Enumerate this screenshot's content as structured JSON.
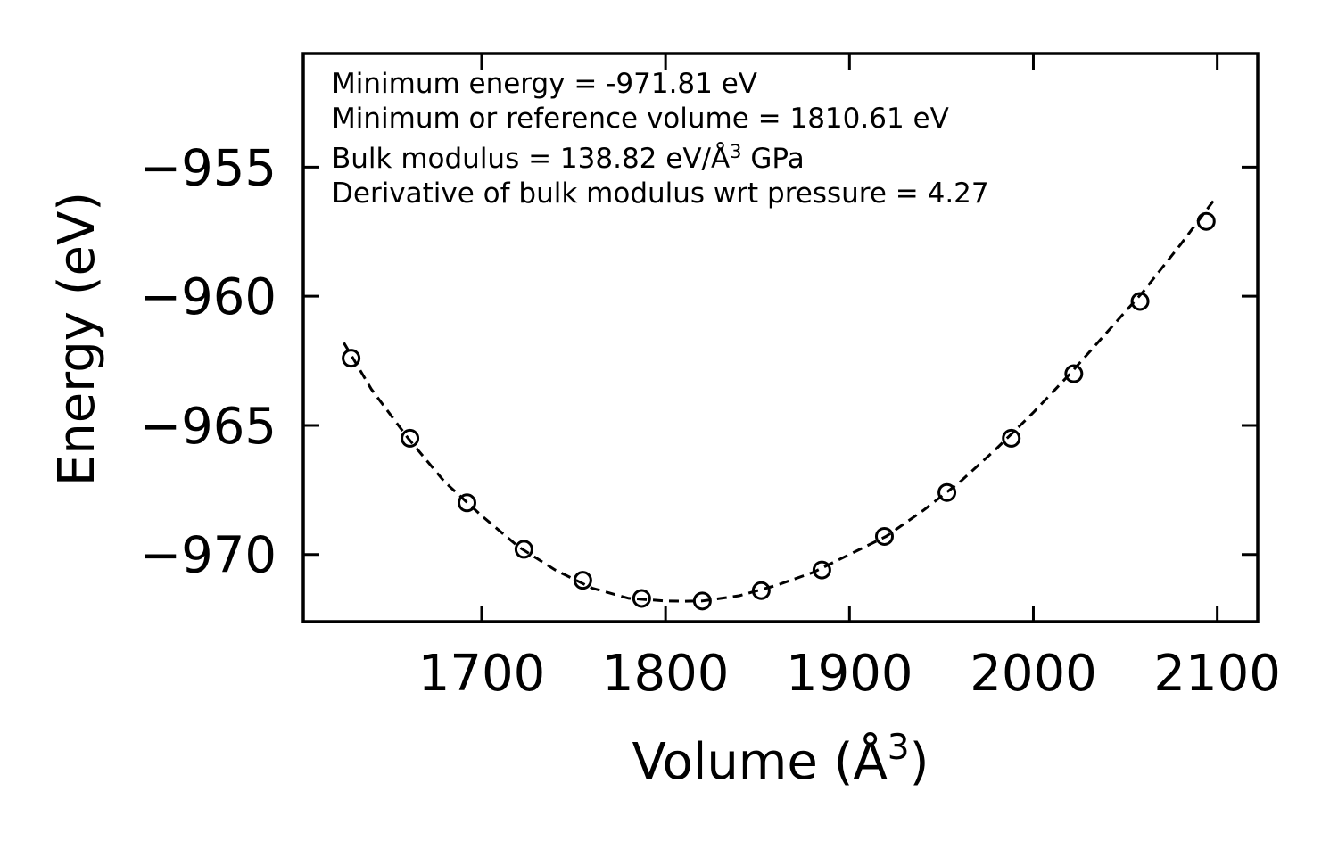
{
  "chart_data": {
    "type": "scatter",
    "title": "",
    "xlabel_main": "Volume (Å",
    "xlabel_sup": "3",
    "xlabel_close": ")",
    "ylabel": "Energy (eV)",
    "xlim": [
      1603,
      2122
    ],
    "ylim": [
      -972.6,
      -950.6
    ],
    "xticks": [
      1700,
      1800,
      1900,
      2000,
      2100
    ],
    "xtick_labels": [
      "1700",
      "1800",
      "1900",
      "2000",
      "2100"
    ],
    "yticks": [
      -955,
      -960,
      -965,
      -970
    ],
    "ytick_labels": [
      "−955",
      "−960",
      "−965",
      "−970"
    ],
    "series": [
      {
        "name": "data",
        "style": "open-circle",
        "x": [
          1629,
          1661,
          1692,
          1723,
          1755,
          1787,
          1820,
          1852,
          1885,
          1919,
          1953,
          1988,
          2022,
          2058,
          2094
        ],
        "y": [
          -962.4,
          -965.5,
          -968.0,
          -969.8,
          -971.0,
          -971.7,
          -971.8,
          -971.4,
          -970.6,
          -969.3,
          -967.6,
          -965.5,
          -963.0,
          -960.2,
          -957.1
        ]
      },
      {
        "name": "fit",
        "style": "dashed-line",
        "x": [
          1625,
          1640,
          1660,
          1680,
          1700,
          1720,
          1740,
          1760,
          1780,
          1800,
          1810,
          1820,
          1840,
          1860,
          1880,
          1900,
          1920,
          1940,
          1960,
          1980,
          2000,
          2020,
          2040,
          2060,
          2080,
          2098
        ],
        "y": [
          -961.8,
          -963.6,
          -965.5,
          -967.2,
          -968.5,
          -969.7,
          -970.6,
          -971.3,
          -971.7,
          -971.8,
          -971.81,
          -971.8,
          -971.6,
          -971.2,
          -970.7,
          -970.0,
          -969.3,
          -968.3,
          -967.2,
          -965.9,
          -964.5,
          -963.0,
          -961.4,
          -959.8,
          -958.0,
          -956.3
        ]
      }
    ],
    "annotations": [
      {
        "text": "Minimum energy = -971.81 eV"
      },
      {
        "text": "Minimum or reference volume = 1810.61 eV"
      },
      {
        "main": "Bulk modulus = 138.82 eV/Å",
        "sup": "3",
        "tail": " GPa"
      },
      {
        "text": "Derivative of bulk modulus wrt pressure = 4.27"
      }
    ],
    "grid": false,
    "legend": "none"
  }
}
